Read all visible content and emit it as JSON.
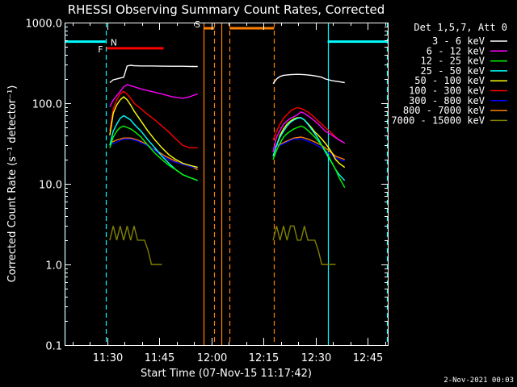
{
  "chart_data": {
    "type": "line",
    "title": "RHESSI Observing Summary Count Rates, Corrected",
    "xlabel": "Start Time (07-Nov-15 11:17:42)",
    "ylabel": "Corrected Count Rate (s⁻¹ detector⁻¹)",
    "yscale": "log",
    "ylim": [
      0.1,
      1000
    ],
    "xlim_minutes": [
      0,
      93
    ],
    "y_ticks": [
      {
        "value": 0.1,
        "label": "0.1"
      },
      {
        "value": 1,
        "label": "1.0"
      },
      {
        "value": 10,
        "label": "10.0"
      },
      {
        "value": 100,
        "label": "100.0"
      },
      {
        "value": 1000,
        "label": "1000.0"
      }
    ],
    "x_ticks": [
      {
        "t": 12.3,
        "label": "11:30"
      },
      {
        "t": 27.3,
        "label": "11:45"
      },
      {
        "t": 42.3,
        "label": "12:00"
      },
      {
        "t": 57.3,
        "label": "12:15"
      },
      {
        "t": 72.3,
        "label": "12:30"
      },
      {
        "t": 87.3,
        "label": "12:45"
      }
    ],
    "x_minor_step": 5,
    "legend_title": "Det 1,5,7, Att 0",
    "legend_position": "right",
    "series": [
      {
        "name": "3 - 6 keV",
        "color": "#ffffff",
        "segments": [
          {
            "t": [
              13,
              14,
              15,
              16,
              17,
              18,
              19,
              20,
              22,
              25,
              28,
              31,
              34,
              36,
              37,
              38.3
            ],
            "y": [
              180,
              195,
              200,
              205,
              210,
              290,
              295,
              292,
              290,
              290,
              288,
              287,
              287,
              286,
              285,
              285
            ]
          },
          {
            "t": [
              60,
              61,
              62,
              63,
              65,
              67,
              69,
              71,
              73,
              74,
              75,
              77,
              79,
              80.6
            ],
            "y": [
              175,
              200,
              215,
              222,
              226,
              228,
              226,
              222,
              215,
              210,
              200,
              190,
              185,
              180
            ]
          }
        ]
      },
      {
        "name": "6 - 12 keV",
        "color": "#ff00ff",
        "segments": [
          {
            "t": [
              13,
              14,
              16,
              17,
              18,
              19,
              20,
              22,
              25,
              28,
              31,
              34,
              36,
              37,
              38.3
            ],
            "y": [
              90,
              110,
              140,
              160,
              170,
              165,
              160,
              150,
              140,
              130,
              120,
              115,
              120,
              125,
              130
            ]
          },
          {
            "t": [
              60,
              61,
              62,
              63,
              64,
              65,
              66,
              67,
              68,
              69,
              70,
              71,
              72,
              73,
              74,
              75,
              77,
              79,
              80.6
            ],
            "y": [
              25,
              38,
              46,
              55,
              60,
              65,
              68,
              72,
              78,
              75,
              70,
              65,
              60,
              55,
              50,
              45,
              40,
              35,
              32
            ]
          }
        ]
      },
      {
        "name": "12 - 25 keV",
        "color": "#00ff00",
        "segments": [
          {
            "t": [
              13,
              14,
              15,
              16,
              17,
              18,
              19,
              20,
              22,
              24,
              26,
              28,
              30,
              32,
              34,
              36,
              38.3
            ],
            "y": [
              28,
              38,
              45,
              50,
              52,
              50,
              48,
              45,
              38,
              30,
              24,
              20,
              17,
              15,
              13,
              12,
              11
            ]
          },
          {
            "t": [
              60,
              61,
              62,
              63,
              64,
              65,
              66,
              67,
              68,
              69,
              70,
              71,
              72,
              73,
              74,
              75,
              76,
              77,
              78,
              79,
              80.6
            ],
            "y": [
              20,
              26,
              32,
              38,
              42,
              45,
              48,
              50,
              52,
              50,
              46,
              42,
              38,
              34,
              30,
              26,
              22,
              18,
              15,
              12,
              9
            ]
          }
        ]
      },
      {
        "name": "25 - 50 keV",
        "color": "#00ffff",
        "segments": [
          {
            "t": [
              13,
              14,
              15,
              16,
              17,
              18,
              19,
              20,
              22,
              24,
              26,
              28,
              30,
              32,
              34,
              36,
              38.3
            ],
            "y": [
              30,
              45,
              55,
              65,
              70,
              66,
              62,
              55,
              45,
              35,
              28,
              22,
              18,
              15,
              13,
              12,
              11
            ]
          },
          {
            "t": [
              60,
              61,
              62,
              63,
              64,
              65,
              66,
              67,
              68,
              69,
              70,
              71,
              72,
              73,
              74,
              75,
              76,
              77,
              78,
              79,
              80.6
            ],
            "y": [
              22,
              30,
              38,
              45,
              52,
              58,
              62,
              65,
              66,
              62,
              55,
              48,
              42,
              36,
              30,
              25,
              21,
              18,
              15,
              13,
              11
            ]
          }
        ]
      },
      {
        "name": "50 - 100 keV",
        "color": "#ffff00",
        "segments": [
          {
            "t": [
              13,
              14,
              15,
              16,
              17,
              18,
              19,
              20,
              22,
              24,
              26,
              28,
              30,
              32,
              34,
              36,
              38.3
            ],
            "y": [
              40,
              75,
              95,
              110,
              120,
              110,
              95,
              80,
              60,
              45,
              35,
              28,
              23,
              20,
              18,
              17,
              16
            ]
          },
          {
            "t": [
              60,
              61,
              62,
              63,
              64,
              65,
              66,
              67,
              68,
              69,
              70,
              71,
              72,
              73,
              74,
              75,
              76,
              77,
              78,
              79,
              80.6
            ],
            "y": [
              22,
              30,
              40,
              48,
              55,
              60,
              64,
              66,
              66,
              62,
              56,
              50,
              44,
              40,
              36,
              32,
              28,
              24,
              20,
              18,
              16
            ]
          }
        ]
      },
      {
        "name": "100 - 300 keV",
        "color": "#ff0000",
        "segments": [
          {
            "t": [
              13,
              14,
              15,
              16,
              17,
              18,
              19,
              20,
              22,
              24,
              26,
              28,
              30,
              32,
              34,
              36,
              38.3
            ],
            "y": [
              45,
              85,
              110,
              130,
              140,
              130,
              115,
              100,
              85,
              72,
              62,
              52,
              44,
              36,
              30,
              28,
              28
            ]
          },
          {
            "t": [
              60,
              61,
              62,
              63,
              64,
              65,
              66,
              67,
              68,
              69,
              70,
              71,
              72,
              73,
              74,
              75,
              76,
              77,
              78,
              79,
              80.6
            ],
            "y": [
              35,
              45,
              55,
              65,
              72,
              80,
              85,
              88,
              86,
              82,
              78,
              72,
              66,
              60,
              55,
              50,
              46,
              42,
              38,
              35,
              32
            ]
          }
        ]
      },
      {
        "name": "300 - 800 keV",
        "color": "#0000ff",
        "segments": [
          {
            "t": [
              13,
              15,
              17,
              19,
              21,
              23,
              25,
              27,
              29,
              31,
              33,
              35,
              37,
              38.3
            ],
            "y": [
              30,
              33,
              36,
              36,
              34,
              31,
              28,
              24,
              21,
              19,
              18,
              17,
              16,
              16
            ]
          },
          {
            "t": [
              60,
              62,
              64,
              66,
              68,
              70,
              72,
              74,
              76,
              78,
              80.6
            ],
            "y": [
              28,
              30,
              33,
              36,
              36,
              34,
              31,
              28,
              24,
              21,
              19
            ]
          }
        ]
      },
      {
        "name": "800 - 7000 keV",
        "color": "#ff8000",
        "segments": [
          {
            "t": [
              13,
              15,
              17,
              19,
              21,
              23,
              25,
              27,
              29,
              31,
              33,
              35,
              37,
              38.3
            ],
            "y": [
              32,
              35,
              37,
              37,
              35,
              32,
              28,
              25,
              22,
              20,
              18,
              17,
              16,
              15
            ]
          },
          {
            "t": [
              60,
              62,
              64,
              66,
              68,
              70,
              72,
              74,
              76,
              78,
              80.6
            ],
            "y": [
              28,
              31,
              34,
              37,
              38,
              36,
              33,
              30,
              26,
              22,
              20
            ]
          }
        ]
      },
      {
        "name": "7000 - 15000 keV",
        "color": "#808000",
        "segments": [
          {
            "t": [
              13,
              14,
              15,
              16,
              17,
              18,
              19,
              20,
              21,
              22,
              23,
              24,
              25,
              26,
              27,
              28
            ],
            "y": [
              2,
              3,
              2,
              3,
              2,
              3,
              2,
              3,
              2,
              2,
              2,
              1.5,
              1,
              1,
              1,
              1
            ]
          },
          {
            "t": [
              60,
              61,
              62,
              63,
              64,
              65,
              66,
              67,
              68,
              69,
              70,
              71,
              72,
              73,
              74,
              75,
              76,
              77,
              78
            ],
            "y": [
              2,
              3,
              2,
              3,
              2,
              3,
              3,
              2,
              2,
              3,
              2,
              2,
              2,
              1.5,
              1,
              1,
              1,
              1,
              1
            ]
          }
        ]
      }
    ],
    "flag_bars": [
      {
        "label": "N",
        "color": "#00ffff",
        "t_ranges": [
          [
            0,
            11.8
          ],
          [
            75.7,
            93
          ]
        ],
        "y_value": 580
      },
      {
        "label": "F",
        "color": "#ff0000",
        "t_ranges": [
          [
            12,
            28.5
          ]
        ],
        "y_value": 480
      },
      {
        "label": "S",
        "color": "#ff8000",
        "t_ranges": [
          [
            40,
            43.1
          ],
          [
            47.5,
            60.3
          ]
        ],
        "y_value": 850
      }
    ],
    "vertical_lines": [
      {
        "t": 0,
        "color": "#00ffff",
        "style": "solid"
      },
      {
        "t": 11.8,
        "color": "#00ffff",
        "style": "dashed"
      },
      {
        "t": 39.9,
        "color": "#ff8000",
        "style": "solid"
      },
      {
        "t": 45,
        "color": "#ff8000",
        "style": "solid"
      },
      {
        "t": 43.1,
        "color": "#ff8000",
        "style": "dashed"
      },
      {
        "t": 47.5,
        "color": "#ff8000",
        "style": "dashed"
      },
      {
        "t": 60.3,
        "color": "#ff8000",
        "style": "dashed"
      },
      {
        "t": 75.7,
        "color": "#00ffff",
        "style": "solid"
      },
      {
        "t": 92.7,
        "color": "#00ffff",
        "style": "dashed"
      }
    ]
  },
  "footer": {
    "timestamp": "2-Nov-2021 00:03"
  }
}
